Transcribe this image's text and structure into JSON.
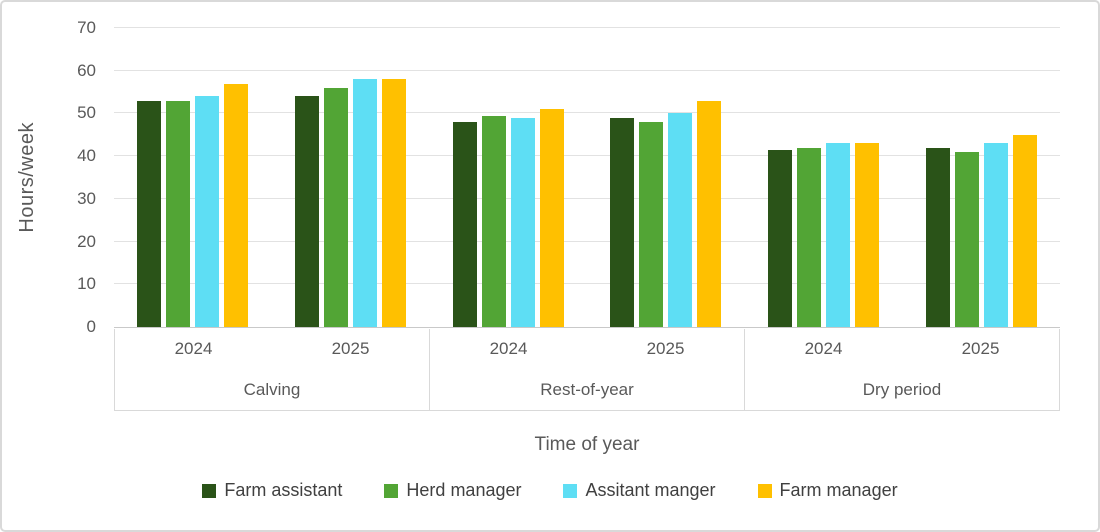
{
  "frame": {
    "background": "#FFFFFF",
    "border_color": "#D9D9D9"
  },
  "colors": {
    "axis_text": "#595959",
    "legend_text": "#404040",
    "gridline": "#E2E2E2",
    "axis_line": "#C9C9C9",
    "band_line": "#D9D9D9"
  },
  "chart_data": {
    "type": "bar",
    "title": "",
    "ylabel": "Hours/week",
    "xlabel": "Time of year",
    "ylim": [
      0,
      70
    ],
    "yticks": [
      0,
      10,
      20,
      30,
      40,
      50,
      60,
      70
    ],
    "grid": "horizontal",
    "legend_position": "bottom",
    "group_labels": [
      "Calving",
      "Rest-of-year",
      "Dry period"
    ],
    "subgroup_labels": [
      "2024",
      "2025"
    ],
    "series": [
      {
        "name": "Farm assistant",
        "color": "#2A5318",
        "values": [
          53,
          54,
          48,
          49,
          41.5,
          42
        ]
      },
      {
        "name": "Herd manager",
        "color": "#52A535",
        "values": [
          53,
          56,
          49.5,
          48,
          42,
          41
        ]
      },
      {
        "name": "Assitant manger",
        "color": "#5EDEF4",
        "values": [
          54,
          58,
          49,
          50,
          43,
          43
        ]
      },
      {
        "name": "Farm manager",
        "color": "#FFC000",
        "values": [
          57,
          58,
          51,
          53,
          43,
          45
        ]
      }
    ]
  }
}
